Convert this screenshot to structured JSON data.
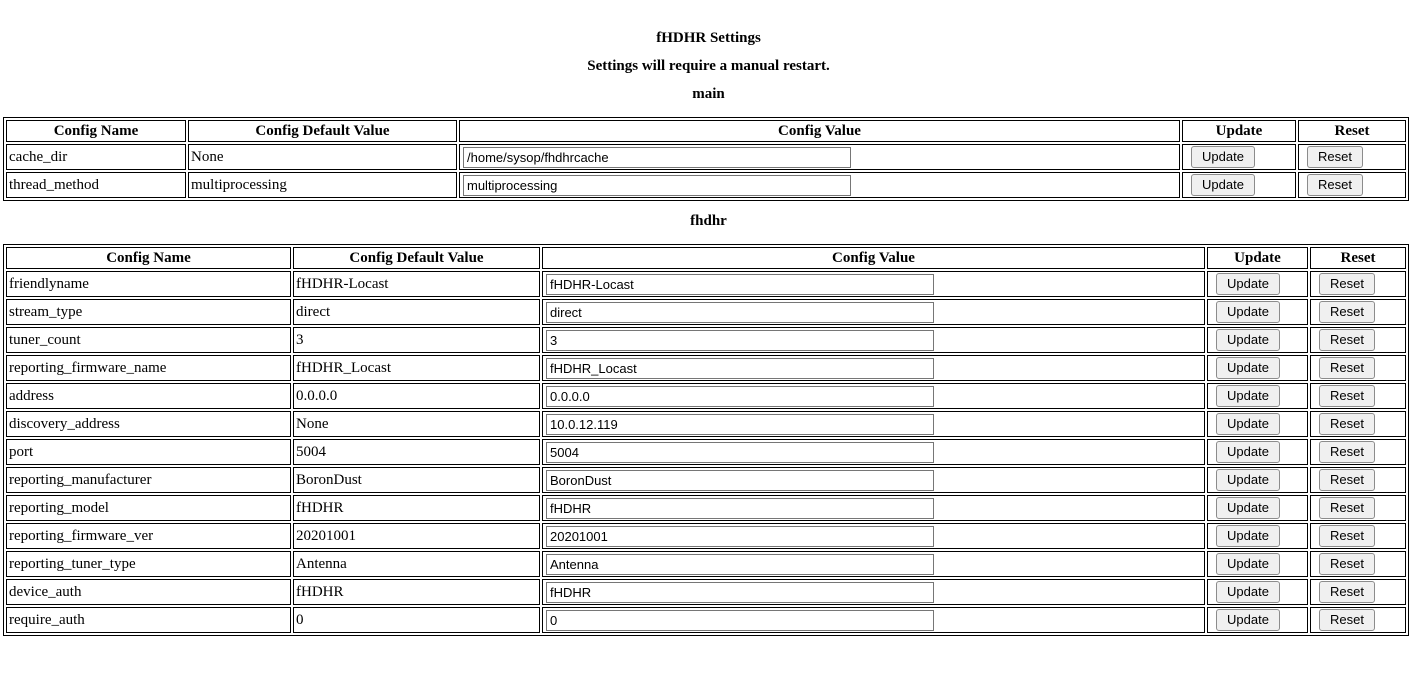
{
  "page": {
    "title": "fHDHR Settings",
    "subtitle": "Settings will require a manual restart."
  },
  "columns": [
    "Config Name",
    "Config Default Value",
    "Config Value",
    "Update",
    "Reset"
  ],
  "buttons": {
    "update": "Update",
    "reset": "Reset"
  },
  "sections": [
    {
      "heading": "main",
      "rows": [
        {
          "name": "cache_dir",
          "default": "None",
          "value": "/home/sysop/fhdhrcache"
        },
        {
          "name": "thread_method",
          "default": "multiprocessing",
          "value": "multiprocessing"
        }
      ]
    },
    {
      "heading": "fhdhr",
      "rows": [
        {
          "name": "friendlyname",
          "default": "fHDHR-Locast",
          "value": "fHDHR-Locast"
        },
        {
          "name": "stream_type",
          "default": "direct",
          "value": "direct"
        },
        {
          "name": "tuner_count",
          "default": "3",
          "value": "3"
        },
        {
          "name": "reporting_firmware_name",
          "default": "fHDHR_Locast",
          "value": "fHDHR_Locast"
        },
        {
          "name": "address",
          "default": "0.0.0.0",
          "value": "0.0.0.0"
        },
        {
          "name": "discovery_address",
          "default": "None",
          "value": "10.0.12.119"
        },
        {
          "name": "port",
          "default": "5004",
          "value": "5004"
        },
        {
          "name": "reporting_manufacturer",
          "default": "BoronDust",
          "value": "BoronDust"
        },
        {
          "name": "reporting_model",
          "default": "fHDHR",
          "value": "fHDHR"
        },
        {
          "name": "reporting_firmware_ver",
          "default": "20201001",
          "value": "20201001"
        },
        {
          "name": "reporting_tuner_type",
          "default": "Antenna",
          "value": "Antenna"
        },
        {
          "name": "device_auth",
          "default": "fHDHR",
          "value": "fHDHR"
        },
        {
          "name": "require_auth",
          "default": "0",
          "value": "0"
        }
      ]
    }
  ]
}
